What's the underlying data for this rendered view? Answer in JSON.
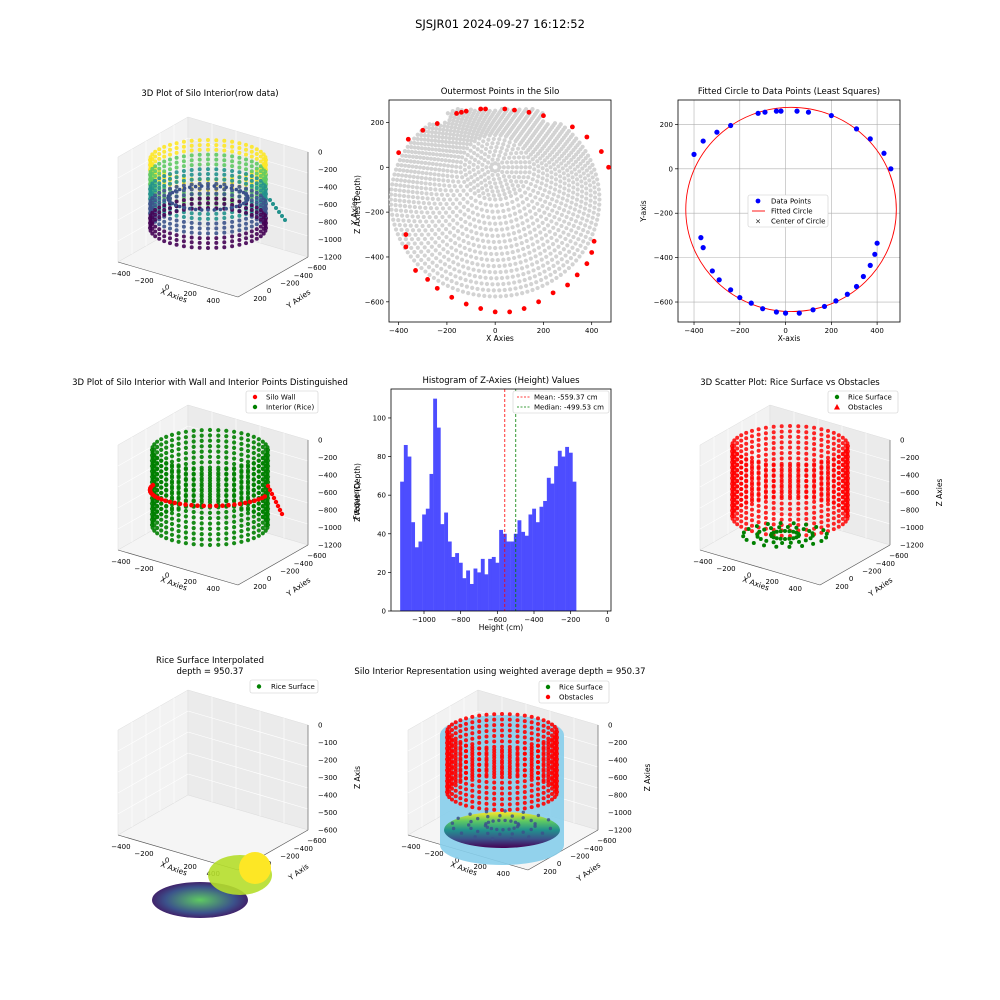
{
  "suptitle": "SJSJR01 2024-09-27 16:12:52",
  "colors": {
    "wall": "#ff0000",
    "rice": "#008000",
    "blue": "#0000ff",
    "hist": "#4d4dff",
    "gray": "#d3d3d3",
    "sky": "#87ceeb"
  },
  "chart_data": [
    {
      "id": "p1",
      "type": "scatter3d",
      "title": "3D Plot of Silo Interior(row data)",
      "xlabel": "X Axies",
      "ylabel": "Y Axies",
      "zlabel": "Z Axies (Depth)",
      "xticks": [
        "−400",
        "−200",
        "0",
        "200",
        "400"
      ],
      "yticks": [
        "200",
        "0",
        "−200",
        "−400",
        "−600"
      ],
      "zticks": [
        "0",
        "−200",
        "−400",
        "−600",
        "−800",
        "−1000",
        "−1200"
      ],
      "colormap": "viridis"
    },
    {
      "id": "p2",
      "type": "scatter",
      "title": "Outermost Points in the Silo",
      "xlabel": "X Axies",
      "ylabel": "Y Axies",
      "xlim": [
        -440,
        480
      ],
      "ylim": [
        -690,
        300
      ],
      "xticks": [
        "−400",
        "−200",
        "0",
        "200",
        "400"
      ],
      "yticks": [
        "200",
        "0",
        "−200",
        "−400",
        "−600"
      ],
      "center": [
        0,
        0
      ],
      "rings": 24,
      "max_radius": 300,
      "outer_points": [
        [
          -400,
          65
        ],
        [
          -360,
          125
        ],
        [
          -300,
          165
        ],
        [
          -240,
          195
        ],
        [
          -160,
          240
        ],
        [
          -140,
          245
        ],
        [
          -120,
          250
        ],
        [
          -60,
          260
        ],
        [
          -40,
          260
        ],
        [
          40,
          260
        ],
        [
          80,
          255
        ],
        [
          140,
          245
        ],
        [
          200,
          230
        ],
        [
          320,
          180
        ],
        [
          380,
          135
        ],
        [
          440,
          70
        ],
        [
          470,
          0
        ],
        [
          -370,
          -300
        ],
        [
          -370,
          -355
        ],
        [
          -330,
          -460
        ],
        [
          -280,
          -500
        ],
        [
          -240,
          -540
        ],
        [
          -180,
          -580
        ],
        [
          -120,
          -610
        ],
        [
          -60,
          -630
        ],
        [
          0,
          -645
        ],
        [
          60,
          -645
        ],
        [
          120,
          -630
        ],
        [
          180,
          -600
        ],
        [
          240,
          -560
        ],
        [
          300,
          -525
        ],
        [
          340,
          -480
        ],
        [
          380,
          -430
        ],
        [
          400,
          -380
        ],
        [
          410,
          -330
        ]
      ]
    },
    {
      "id": "p3",
      "type": "scatter",
      "title": "Fitted Circle to Data Points (Least Squares)",
      "xlabel": "X-axis",
      "ylabel": "Y-axis",
      "xlim": [
        -470,
        500
      ],
      "ylim": [
        -690,
        310
      ],
      "xticks": [
        "−400",
        "−200",
        "0",
        "200",
        "400"
      ],
      "yticks": [
        "200",
        "0",
        "−200",
        "−400",
        "−600"
      ],
      "legend": [
        "Data Points",
        "Fitted Circle",
        "Center of Circle"
      ],
      "circle": {
        "cx": 24,
        "cy": -183,
        "r": 460
      },
      "points": [
        [
          -400,
          65
        ],
        [
          -360,
          125
        ],
        [
          -300,
          165
        ],
        [
          -240,
          195
        ],
        [
          -120,
          250
        ],
        [
          -90,
          255
        ],
        [
          -40,
          260
        ],
        [
          -20,
          260
        ],
        [
          50,
          260
        ],
        [
          100,
          255
        ],
        [
          200,
          240
        ],
        [
          310,
          180
        ],
        [
          370,
          135
        ],
        [
          430,
          70
        ],
        [
          460,
          0
        ],
        [
          -370,
          -310
        ],
        [
          -360,
          -355
        ],
        [
          -320,
          -460
        ],
        [
          -290,
          -500
        ],
        [
          -240,
          -545
        ],
        [
          -200,
          -580
        ],
        [
          -150,
          -605
        ],
        [
          -100,
          -630
        ],
        [
          -40,
          -645
        ],
        [
          0,
          -650
        ],
        [
          60,
          -650
        ],
        [
          120,
          -635
        ],
        [
          170,
          -620
        ],
        [
          220,
          -595
        ],
        [
          270,
          -565
        ],
        [
          310,
          -530
        ],
        [
          340,
          -485
        ],
        [
          370,
          -435
        ],
        [
          390,
          -385
        ],
        [
          400,
          -335
        ]
      ]
    },
    {
      "id": "p4",
      "type": "scatter3d",
      "title": "3D Plot of Silo Interior with Wall and Interior Points Distinguished",
      "xlabel": "X Axies",
      "ylabel": "Y Axies",
      "zlabel": "Z Axies (Depth)",
      "xticks": [
        "−400",
        "−200",
        "0",
        "200",
        "400"
      ],
      "yticks": [
        "200",
        "0",
        "−200",
        "−400",
        "−600"
      ],
      "zticks": [
        "0",
        "−200",
        "−400",
        "−600",
        "−800",
        "−1000",
        "−1200"
      ],
      "legend": [
        "Silo Wall",
        "Interior (Rice)"
      ]
    },
    {
      "id": "p5",
      "type": "bar",
      "title": "Histogram of Z-Axies (Height) Values",
      "xlabel": "Height (cm)",
      "ylabel": "Frequency",
      "xlim": [
        -1180,
        20
      ],
      "ylim": [
        0,
        115
      ],
      "xticks": [
        -1000,
        -800,
        -600,
        -400,
        -200,
        0
      ],
      "xtick_labels": [
        "−1000",
        "−800",
        "−600",
        "−400",
        "−200",
        "0"
      ],
      "yticks": [
        0,
        20,
        40,
        60,
        80,
        100
      ],
      "bin_start": -1130,
      "bin_width": 20,
      "values": [
        67,
        86,
        80,
        46,
        33,
        36,
        50,
        53,
        71,
        110,
        95,
        45,
        51,
        36,
        28,
        30,
        25,
        17,
        21,
        14,
        22,
        20,
        27,
        19,
        27,
        28,
        25,
        42,
        40,
        36,
        36,
        40,
        47,
        41,
        39,
        50,
        53,
        46,
        54,
        57,
        69,
        66,
        75,
        83,
        80,
        85,
        82,
        67
      ],
      "mean": -559.37,
      "median": -499.53,
      "legend": [
        "Mean: -559.37 cm",
        "Median: -499.53 cm"
      ]
    },
    {
      "id": "p6",
      "type": "scatter3d",
      "title": "3D Scatter Plot: Rice Surface vs Obstacles",
      "xlabel": "X Axies",
      "ylabel": "Y Axies",
      "zlabel": "Z Axies",
      "xticks": [
        "−400",
        "−200",
        "0",
        "200",
        "400"
      ],
      "yticks": [
        "200",
        "0",
        "−200",
        "−400",
        "−600"
      ],
      "zticks": [
        "0",
        "−200",
        "−400",
        "−600",
        "−800",
        "−1000",
        "−1200"
      ],
      "legend": [
        "Rice Surface",
        "Obstacles"
      ]
    },
    {
      "id": "p7",
      "type": "surface3d",
      "title": "Rice Surface Interpolated",
      "subtitle": "depth = 950.37",
      "xlabel": "X Axies",
      "ylabel": "Y Axis",
      "zlabel": "Z Axis",
      "xticks": [
        "−400",
        "−200",
        "0",
        "200",
        "400"
      ],
      "yticks": [
        "200",
        "0",
        "−200",
        "−400",
        "−600"
      ],
      "zticks": [
        "0",
        "−100",
        "−200",
        "−300",
        "−400",
        "−500",
        "−600"
      ],
      "legend": [
        "Rice Surface"
      ]
    },
    {
      "id": "p8",
      "type": "scatter3d",
      "title": "Silo Interior Representation using weighted average depth = 950.37",
      "xlabel": "X Axies",
      "ylabel": "Y Axies",
      "zlabel": "Z Axies",
      "xticks": [
        "−400",
        "−200",
        "0",
        "200",
        "400"
      ],
      "yticks": [
        "200",
        "0",
        "−200",
        "−400",
        "−600"
      ],
      "zticks": [
        "0",
        "−200",
        "−400",
        "−600",
        "−800",
        "−1000",
        "−1200"
      ],
      "legend": [
        "Rice Surface",
        "Obstacles"
      ]
    }
  ]
}
